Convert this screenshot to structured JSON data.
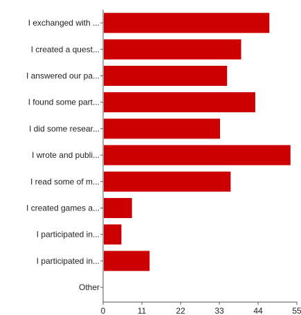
{
  "chart_data": {
    "type": "bar",
    "orientation": "horizontal",
    "title": "",
    "xlabel": "",
    "ylabel": "",
    "categories": [
      "I exchanged with ...",
      "I created a quest...",
      "I answered our pa...",
      "I found some part...",
      "I did some resear...",
      "I wrote and publi...",
      "I read some of m...",
      "I created games a...",
      "I participated in...",
      "I participated in...",
      "Other"
    ],
    "values": [
      47,
      39,
      35,
      43,
      33,
      53,
      36,
      8,
      5,
      13,
      0
    ],
    "xlim": [
      0,
      55
    ],
    "xticks": [
      0,
      11,
      22,
      33,
      44,
      55
    ],
    "bar_color": "#cc0000",
    "grid": false,
    "legend": "none"
  }
}
